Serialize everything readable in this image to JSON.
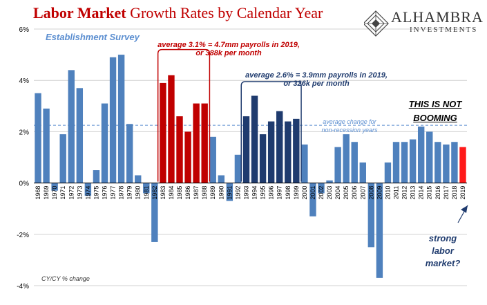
{
  "header": {
    "title_bold": "Labor Market",
    "title_rest": " Growth Rates by Calendar Year",
    "subtitle": "Establishment Survey"
  },
  "logo": {
    "name": "ALHAMBRA",
    "sub": "INVESTMENTS"
  },
  "annotations": {
    "red_line1": "average 3.1% = 4.7mm payrolls in 2019,",
    "red_line2": "or 388k per month",
    "navy_line1": "average 2.6% = 3.9mm payrolls in 2019,",
    "navy_line2": "or 326k per month",
    "avg_line1": "average change for",
    "avg_line2": "non-recession years",
    "boom_line1": "THIS IS NOT",
    "boom_line2": "BOOMING",
    "strong_line1": "strong",
    "strong_line2": "labor",
    "strong_line3": "market?"
  },
  "footnote": "CY/CY % change",
  "colors": {
    "blue": "#4f81bd",
    "red": "#c00000",
    "navy": "#1f3b6e",
    "bright_red": "#ff1a1a",
    "avg_line": "#5b8ed0"
  },
  "chart_data": {
    "type": "bar",
    "title": "Labor Market Growth Rates by Calendar Year",
    "ylabel": "",
    "xlabel": "",
    "ylim": [
      -4,
      6
    ],
    "yticks": [
      "-4%",
      "-2%",
      "0%",
      "2%",
      "4%",
      "6%"
    ],
    "ytick_values": [
      -4,
      -2,
      0,
      2,
      4,
      6
    ],
    "grid": true,
    "average_line": 2.25,
    "categories": [
      "1968",
      "1969",
      "1970",
      "1971",
      "1972",
      "1973",
      "1974",
      "1975",
      "1976",
      "1977",
      "1978",
      "1979",
      "1980",
      "1981",
      "1982",
      "1983",
      "1984",
      "1985",
      "1986",
      "1987",
      "1988",
      "1989",
      "1990",
      "1991",
      "1992",
      "1993",
      "1994",
      "1995",
      "1996",
      "1997",
      "1998",
      "1999",
      "2000",
      "2001",
      "2002",
      "2003",
      "2004",
      "2005",
      "2006",
      "2007",
      "2008",
      "2009",
      "2010",
      "2011",
      "2012",
      "2013",
      "2014",
      "2015",
      "2016",
      "2017",
      "2018",
      "2019"
    ],
    "values": [
      3.5,
      2.9,
      -0.3,
      1.9,
      4.4,
      3.7,
      -0.5,
      0.5,
      3.1,
      4.9,
      5.0,
      2.3,
      0.3,
      -0.4,
      -2.3,
      3.9,
      4.2,
      2.6,
      2.0,
      3.1,
      3.1,
      1.8,
      0.3,
      -0.7,
      1.1,
      2.6,
      3.4,
      1.9,
      2.4,
      2.8,
      2.4,
      2.5,
      1.5,
      -1.3,
      -0.4,
      0.1,
      1.4,
      1.9,
      1.6,
      0.8,
      -2.5,
      -3.7,
      0.8,
      1.6,
      1.6,
      1.7,
      2.2,
      2.0,
      1.6,
      1.5,
      1.6,
      1.4
    ],
    "highlight_red": [
      "1983",
      "1984",
      "1985",
      "1986",
      "1987",
      "1988"
    ],
    "highlight_navy": [
      "1993",
      "1994",
      "1995",
      "1996",
      "1997",
      "1998",
      "1999"
    ],
    "highlight_latest": [
      "2019"
    ]
  }
}
